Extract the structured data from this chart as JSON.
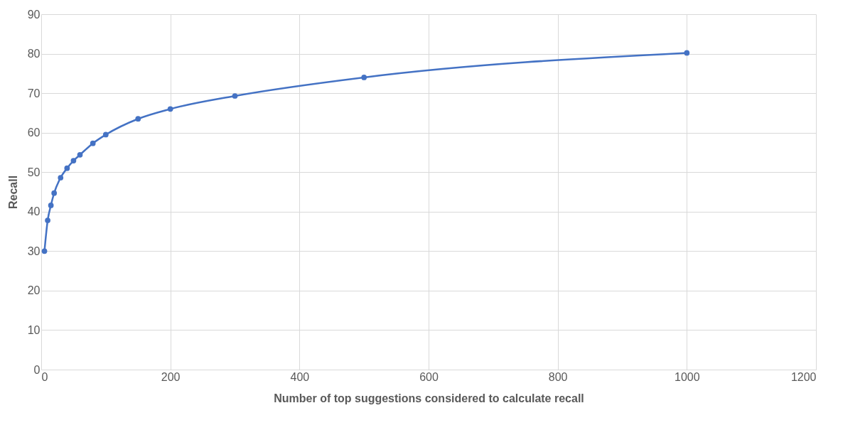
{
  "chart_data": {
    "type": "line",
    "xlabel": "Number of top suggestions considered to calculate recall",
    "ylabel": "Recall",
    "x": [
      5,
      10,
      15,
      20,
      30,
      40,
      50,
      60,
      80,
      100,
      150,
      200,
      300,
      500,
      1000
    ],
    "series": [
      {
        "color": "#4472c4",
        "values": [
          30,
          37.8,
          41.6,
          44.7,
          48.6,
          51.0,
          52.9,
          54.4,
          57.3,
          59.5,
          63.5,
          66.0,
          69.3,
          74.0,
          80.2
        ]
      }
    ],
    "xlim": [
      0,
      1200
    ],
    "xticks": [
      0,
      200,
      400,
      600,
      800,
      1000,
      1200
    ],
    "ylim": [
      0,
      90
    ],
    "yticks": [
      0,
      10,
      20,
      30,
      40,
      50,
      60,
      70,
      80,
      90
    ],
    "grid": true,
    "marker": "circle"
  }
}
